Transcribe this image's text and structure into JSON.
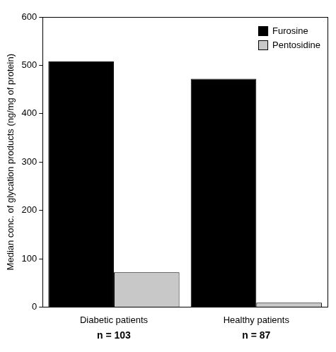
{
  "chart_data": {
    "type": "bar",
    "y_label": "Median conc. of glycation products (ng/mg of protein)",
    "categories": [
      "Diabetic patients",
      "Healthy patients"
    ],
    "annotations": [
      "n = 103",
      "n = 87"
    ],
    "series": [
      {
        "name": "Furosine",
        "color": "#000000",
        "values": [
          508,
          472
        ]
      },
      {
        "name": "Pentosidine",
        "color": "#c8c8c8",
        "values": [
          72,
          9
        ]
      }
    ],
    "ylim": [
      0,
      600
    ],
    "yticks": [
      0,
      100,
      200,
      300,
      400,
      500,
      600
    ],
    "grid": false,
    "legend": "upper right"
  }
}
